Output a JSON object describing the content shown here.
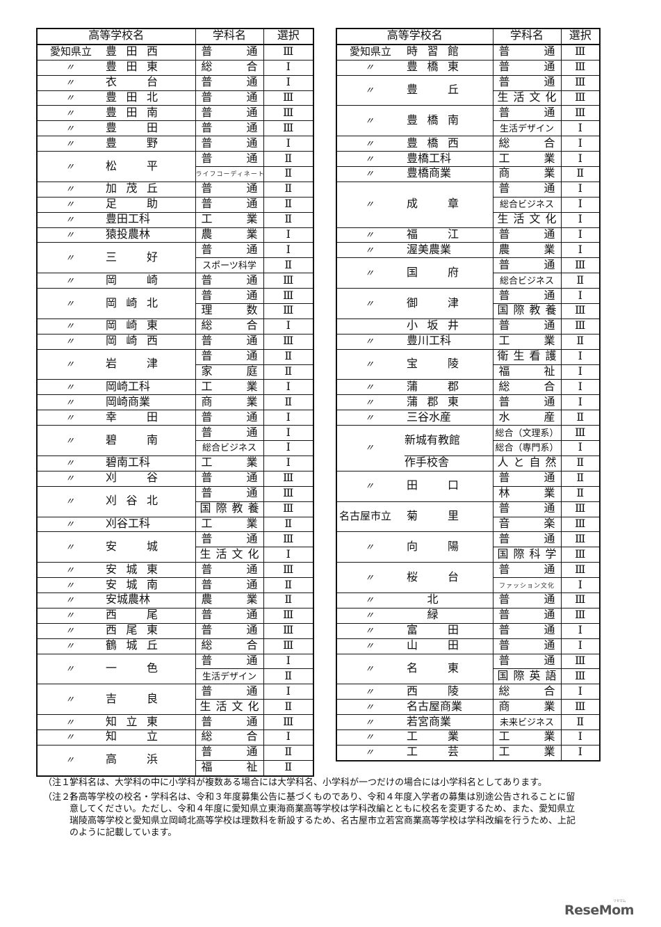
{
  "headers": {
    "school": "高等学校名",
    "dept": "学科名",
    "select": "選択"
  },
  "left_table": [
    {
      "prefix": "愛知県立",
      "units": [
        {
          "name": "豊田西",
          "depts": [
            [
              "普通",
              "Ⅲ"
            ]
          ]
        }
      ]
    },
    {
      "prefix": "〃",
      "units": [
        {
          "name": "豊田東",
          "depts": [
            [
              "総合",
              "Ⅰ"
            ]
          ]
        }
      ]
    },
    {
      "prefix": "〃",
      "units": [
        {
          "name": "衣台",
          "depts": [
            [
              "普通",
              "Ⅰ"
            ]
          ]
        }
      ]
    },
    {
      "prefix": "〃",
      "units": [
        {
          "name": "豊田北",
          "depts": [
            [
              "普通",
              "Ⅲ"
            ]
          ]
        }
      ]
    },
    {
      "prefix": "〃",
      "units": [
        {
          "name": "豊田南",
          "depts": [
            [
              "普通",
              "Ⅲ"
            ]
          ]
        }
      ]
    },
    {
      "prefix": "〃",
      "units": [
        {
          "name": "豊田",
          "depts": [
            [
              "普通",
              "Ⅲ"
            ]
          ]
        }
      ]
    },
    {
      "prefix": "〃",
      "units": [
        {
          "name": "豊野",
          "depts": [
            [
              "普通",
              "Ⅰ"
            ]
          ]
        }
      ]
    },
    {
      "prefix": "〃",
      "units": [
        {
          "name": "松平",
          "depts": [
            [
              "普通",
              "Ⅱ"
            ],
            [
              "ライフコーディネート",
              "Ⅱ"
            ]
          ]
        }
      ]
    },
    {
      "prefix": "〃",
      "units": [
        {
          "name": "加茂丘",
          "depts": [
            [
              "普通",
              "Ⅱ"
            ]
          ]
        }
      ]
    },
    {
      "prefix": "〃",
      "units": [
        {
          "name": "足助",
          "depts": [
            [
              "普通",
              "Ⅱ"
            ]
          ]
        }
      ]
    },
    {
      "prefix": "〃",
      "units": [
        {
          "name": "豊田工科",
          "depts": [
            [
              "工業",
              "Ⅱ"
            ]
          ]
        }
      ]
    },
    {
      "prefix": "〃",
      "units": [
        {
          "name": "猿投農林",
          "depts": [
            [
              "農業",
              "Ⅰ"
            ]
          ]
        }
      ]
    },
    {
      "prefix": "〃",
      "units": [
        {
          "name": "三好",
          "depts": [
            [
              "普通",
              "Ⅰ"
            ],
            [
              "スポーツ科学",
              "Ⅱ"
            ]
          ]
        }
      ]
    },
    {
      "prefix": "〃",
      "units": [
        {
          "name": "岡崎",
          "depts": [
            [
              "普通",
              "Ⅲ"
            ]
          ]
        }
      ]
    },
    {
      "prefix": "〃",
      "units": [
        {
          "name": "岡崎北",
          "depts": [
            [
              "普通",
              "Ⅲ"
            ],
            [
              "理数",
              "Ⅲ"
            ]
          ]
        }
      ]
    },
    {
      "prefix": "〃",
      "units": [
        {
          "name": "岡崎東",
          "depts": [
            [
              "総合",
              "Ⅰ"
            ]
          ]
        }
      ]
    },
    {
      "prefix": "〃",
      "units": [
        {
          "name": "岡崎西",
          "depts": [
            [
              "普通",
              "Ⅲ"
            ]
          ]
        }
      ]
    },
    {
      "prefix": "〃",
      "units": [
        {
          "name": "岩津",
          "depts": [
            [
              "普通",
              "Ⅱ"
            ],
            [
              "家庭",
              "Ⅱ"
            ]
          ]
        }
      ]
    },
    {
      "prefix": "〃",
      "units": [
        {
          "name": "岡崎工科",
          "depts": [
            [
              "工業",
              "Ⅰ"
            ]
          ]
        }
      ]
    },
    {
      "prefix": "〃",
      "units": [
        {
          "name": "岡崎商業",
          "depts": [
            [
              "商業",
              "Ⅱ"
            ]
          ]
        }
      ]
    },
    {
      "prefix": "〃",
      "units": [
        {
          "name": "幸田",
          "depts": [
            [
              "普通",
              "Ⅰ"
            ]
          ]
        }
      ]
    },
    {
      "prefix": "〃",
      "units": [
        {
          "name": "碧南",
          "depts": [
            [
              "普通",
              "Ⅰ"
            ],
            [
              "総合ビジネス",
              "Ⅰ"
            ]
          ]
        }
      ]
    },
    {
      "prefix": "〃",
      "units": [
        {
          "name": "碧南工科",
          "depts": [
            [
              "工業",
              "Ⅰ"
            ]
          ]
        }
      ]
    },
    {
      "prefix": "〃",
      "units": [
        {
          "name": "刈谷",
          "depts": [
            [
              "普通",
              "Ⅲ"
            ]
          ]
        }
      ]
    },
    {
      "prefix": "〃",
      "units": [
        {
          "name": "刈谷北",
          "depts": [
            [
              "普通",
              "Ⅲ"
            ],
            [
              "国際教養",
              "Ⅲ"
            ]
          ]
        }
      ]
    },
    {
      "prefix": "〃",
      "units": [
        {
          "name": "刈谷工科",
          "depts": [
            [
              "工業",
              "Ⅱ"
            ]
          ]
        }
      ]
    },
    {
      "prefix": "〃",
      "units": [
        {
          "name": "安城",
          "depts": [
            [
              "普通",
              "Ⅲ"
            ],
            [
              "生活文化",
              "Ⅰ"
            ]
          ]
        }
      ]
    },
    {
      "prefix": "〃",
      "units": [
        {
          "name": "安城東",
          "depts": [
            [
              "普通",
              "Ⅲ"
            ]
          ]
        }
      ]
    },
    {
      "prefix": "〃",
      "units": [
        {
          "name": "安城南",
          "depts": [
            [
              "普通",
              "Ⅱ"
            ]
          ]
        }
      ]
    },
    {
      "prefix": "〃",
      "units": [
        {
          "name": "安城農林",
          "depts": [
            [
              "農業",
              "Ⅱ"
            ]
          ]
        }
      ]
    },
    {
      "prefix": "〃",
      "units": [
        {
          "name": "西尾",
          "depts": [
            [
              "普通",
              "Ⅲ"
            ]
          ]
        }
      ]
    },
    {
      "prefix": "〃",
      "units": [
        {
          "name": "西尾東",
          "depts": [
            [
              "普通",
              "Ⅲ"
            ]
          ]
        }
      ]
    },
    {
      "prefix": "〃",
      "units": [
        {
          "name": "鶴城丘",
          "depts": [
            [
              "総合",
              "Ⅲ"
            ]
          ]
        }
      ]
    },
    {
      "prefix": "〃",
      "units": [
        {
          "name": "一色",
          "depts": [
            [
              "普通",
              "Ⅰ"
            ],
            [
              "生活デザイン",
              "Ⅱ"
            ]
          ]
        }
      ]
    },
    {
      "prefix": "〃",
      "units": [
        {
          "name": "吉良",
          "depts": [
            [
              "普通",
              "Ⅰ"
            ],
            [
              "生活文化",
              "Ⅱ"
            ]
          ]
        }
      ]
    },
    {
      "prefix": "〃",
      "units": [
        {
          "name": "知立東",
          "depts": [
            [
              "普通",
              "Ⅲ"
            ]
          ]
        }
      ]
    },
    {
      "prefix": "〃",
      "units": [
        {
          "name": "知立",
          "depts": [
            [
              "総合",
              "Ⅰ"
            ]
          ]
        }
      ]
    },
    {
      "prefix": "〃",
      "units": [
        {
          "name": "高浜",
          "depts": [
            [
              "普通",
              "Ⅱ"
            ],
            [
              "福祉",
              "Ⅱ"
            ]
          ]
        }
      ]
    }
  ],
  "right_table": [
    {
      "prefix": "愛知県立",
      "units": [
        {
          "name": "時習館",
          "depts": [
            [
              "普通",
              "Ⅲ"
            ]
          ]
        }
      ]
    },
    {
      "prefix": "〃",
      "units": [
        {
          "name": "豊橋東",
          "depts": [
            [
              "普通",
              "Ⅲ"
            ]
          ]
        }
      ]
    },
    {
      "prefix": "〃",
      "units": [
        {
          "name": "豊丘",
          "depts": [
            [
              "普通",
              "Ⅲ"
            ],
            [
              "生活文化",
              "Ⅲ"
            ]
          ]
        }
      ]
    },
    {
      "prefix": "〃",
      "units": [
        {
          "name": "豊橋南",
          "depts": [
            [
              "普通",
              "Ⅲ"
            ],
            [
              "生活デザイン",
              "Ⅰ"
            ]
          ]
        }
      ]
    },
    {
      "prefix": "〃",
      "units": [
        {
          "name": "豊橋西",
          "depts": [
            [
              "総合",
              "Ⅰ"
            ]
          ]
        }
      ]
    },
    {
      "prefix": "〃",
      "units": [
        {
          "name": "豊橋工科",
          "depts": [
            [
              "工業",
              "Ⅰ"
            ]
          ]
        }
      ]
    },
    {
      "prefix": "〃",
      "units": [
        {
          "name": "豊橋商業",
          "depts": [
            [
              "商業",
              "Ⅱ"
            ]
          ]
        }
      ]
    },
    {
      "prefix": "〃",
      "units": [
        {
          "name": "成章",
          "depts": [
            [
              "普通",
              "Ⅰ"
            ],
            [
              "総合ビジネス",
              "Ⅰ"
            ],
            [
              "生活文化",
              "Ⅰ"
            ]
          ]
        }
      ]
    },
    {
      "prefix": "〃",
      "units": [
        {
          "name": "福江",
          "depts": [
            [
              "普通",
              "Ⅰ"
            ]
          ]
        }
      ]
    },
    {
      "prefix": "〃",
      "units": [
        {
          "name": "渥美農業",
          "depts": [
            [
              "農業",
              "Ⅰ"
            ]
          ]
        }
      ]
    },
    {
      "prefix": "〃",
      "units": [
        {
          "name": "国府",
          "depts": [
            [
              "普通",
              "Ⅲ"
            ],
            [
              "総合ビジネス",
              "Ⅱ"
            ]
          ]
        }
      ]
    },
    {
      "prefix": "〃",
      "units": [
        {
          "name": "御津",
          "depts": [
            [
              "普通",
              "Ⅰ"
            ],
            [
              "国際教養",
              "Ⅲ"
            ]
          ]
        }
      ]
    },
    {
      "prefix": "",
      "units": [
        {
          "name": "小坂井",
          "depts": [
            [
              "普通",
              "Ⅲ"
            ]
          ]
        }
      ]
    },
    {
      "prefix": "〃",
      "units": [
        {
          "name": "豊川工科",
          "depts": [
            [
              "工業",
              "Ⅱ"
            ]
          ]
        }
      ]
    },
    {
      "prefix": "〃",
      "units": [
        {
          "name": "宝陵",
          "depts": [
            [
              "衛生看護",
              "Ⅰ"
            ],
            [
              "福祉",
              "Ⅰ"
            ]
          ]
        }
      ]
    },
    {
      "prefix": "〃",
      "units": [
        {
          "name": "蒲郡",
          "depts": [
            [
              "総合",
              "Ⅰ"
            ]
          ]
        }
      ]
    },
    {
      "prefix": "〃",
      "units": [
        {
          "name": "蒲郡東",
          "depts": [
            [
              "普通",
              "Ⅰ"
            ]
          ]
        }
      ]
    },
    {
      "prefix": "〃",
      "units": [
        {
          "name": "三谷水産",
          "depts": [
            [
              "水産",
              "Ⅱ"
            ]
          ]
        }
      ]
    },
    {
      "prefix": "〃",
      "units": [
        {
          "name": "新城有教館",
          "depts": [
            [
              "総合（文理系）",
              "Ⅲ"
            ],
            [
              "総合（専門系）",
              "Ⅰ"
            ]
          ]
        },
        {
          "name": "作手校舎",
          "depts": [
            [
              "人と自然",
              "Ⅱ"
            ]
          ]
        }
      ]
    },
    {
      "prefix": "〃",
      "units": [
        {
          "name": "田口",
          "depts": [
            [
              "普通",
              "Ⅱ"
            ],
            [
              "林業",
              "Ⅱ"
            ]
          ]
        }
      ]
    },
    {
      "prefix": "名古屋市立",
      "units": [
        {
          "name": "菊里",
          "depts": [
            [
              "普通",
              "Ⅲ"
            ],
            [
              "音楽",
              "Ⅲ"
            ]
          ]
        }
      ]
    },
    {
      "prefix": "〃",
      "units": [
        {
          "name": "向陽",
          "depts": [
            [
              "普通",
              "Ⅲ"
            ],
            [
              "国際科学",
              "Ⅲ"
            ]
          ]
        }
      ]
    },
    {
      "prefix": "〃",
      "units": [
        {
          "name": "桜台",
          "depts": [
            [
              "普通",
              "Ⅲ"
            ],
            [
              "ファッション文化",
              "Ⅰ"
            ]
          ]
        }
      ]
    },
    {
      "prefix": "〃",
      "units": [
        {
          "name": "北",
          "depts": [
            [
              "普通",
              "Ⅲ"
            ]
          ]
        }
      ]
    },
    {
      "prefix": "〃",
      "units": [
        {
          "name": "緑",
          "depts": [
            [
              "普通",
              "Ⅲ"
            ]
          ]
        }
      ]
    },
    {
      "prefix": "〃",
      "units": [
        {
          "name": "富田",
          "depts": [
            [
              "普通",
              "Ⅰ"
            ]
          ]
        }
      ]
    },
    {
      "prefix": "〃",
      "units": [
        {
          "name": "山田",
          "depts": [
            [
              "普通",
              "Ⅰ"
            ]
          ]
        }
      ]
    },
    {
      "prefix": "〃",
      "units": [
        {
          "name": "名東",
          "depts": [
            [
              "普通",
              "Ⅲ"
            ],
            [
              "国際英語",
              "Ⅲ"
            ]
          ]
        }
      ]
    },
    {
      "prefix": "〃",
      "units": [
        {
          "name": "西陵",
          "depts": [
            [
              "総合",
              "Ⅰ"
            ]
          ]
        }
      ]
    },
    {
      "prefix": "〃",
      "units": [
        {
          "name": "名古屋商業",
          "depts": [
            [
              "商業",
              "Ⅲ"
            ]
          ]
        }
      ]
    },
    {
      "prefix": "〃",
      "units": [
        {
          "name": "若宮商業",
          "depts": [
            [
              "未来ビジネス",
              "Ⅱ"
            ]
          ]
        }
      ]
    },
    {
      "prefix": "〃",
      "units": [
        {
          "name": "工業",
          "depts": [
            [
              "工業",
              "Ⅰ"
            ]
          ]
        }
      ]
    },
    {
      "prefix": "〃",
      "units": [
        {
          "name": "工芸",
          "depts": [
            [
              "工業",
              "Ⅰ"
            ]
          ]
        }
      ]
    }
  ],
  "notes": [
    {
      "label": "（注１）",
      "text": "学科名は、大学科の中に小学科が複数ある場合には大学科名、小学科が一つだけの場合には小学科名としてあります。"
    },
    {
      "label": "（注２）",
      "text": "各高等学校の校名・学科名は、令和３年度募集公告に基づくものであり、令和４年度入学者の募集は別途公告されることに留意してください。ただし、令和４年度に愛知県立東海商業高等学校は学科改編とともに校名を変更するため、また、愛知県立瑞陵高等学校と愛知県立岡崎北高等学校は理数科を新設するため、名古屋市立若宮商業高等学校は学科改編を行うため、上記のように記載しています。"
    }
  ],
  "logo": {
    "text": "ReseMom",
    "sub": "リセマム"
  }
}
